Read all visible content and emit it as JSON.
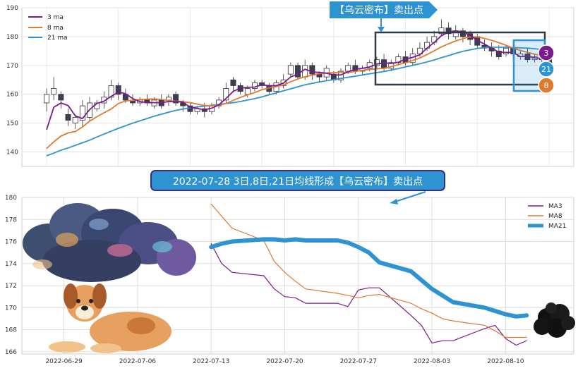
{
  "top_chart": {
    "legend": [
      "3 ma",
      "8 ma",
      "21 ma"
    ],
    "y_ticks": [
      "190",
      "180",
      "170",
      "160",
      "150",
      "140"
    ],
    "callout": "【乌云密布】卖出点",
    "badges": [
      "3",
      "21",
      "8"
    ]
  },
  "bottom_chart": {
    "callout": "2022-07-28 3日,8日,21日均线形成【乌云密布】卖出点",
    "legend": [
      "MA3",
      "MA8",
      "MA21"
    ],
    "y_ticks": [
      "180",
      "178",
      "176",
      "174",
      "172",
      "170",
      "168",
      "166"
    ],
    "x_ticks": [
      "2022-06-29",
      "2022-07-06",
      "2022-07-13",
      "2022-07-20",
      "2022-07-27",
      "2022-08-03",
      "2022-08-10"
    ]
  },
  "colors": {
    "ma3": "#7b1a8c",
    "ma8": "#e07a2e",
    "ma21": "#2e93d1",
    "box": "#2f3a44"
  },
  "chart_data": [
    {
      "type": "line",
      "title": "",
      "xlabel": "",
      "ylabel": "",
      "ylim": [
        135,
        190
      ],
      "grid": true,
      "legend_position": "top-left",
      "x": [
        "2022-06-21",
        "2022-06-22",
        "2022-06-23",
        "2022-06-24",
        "2022-06-27",
        "2022-06-28",
        "2022-06-29",
        "2022-06-30",
        "2022-07-01",
        "2022-07-04",
        "2022-07-05",
        "2022-07-06",
        "2022-07-07",
        "2022-07-08",
        "2022-07-11",
        "2022-07-12",
        "2022-07-13",
        "2022-07-14",
        "2022-07-15",
        "2022-07-18",
        "2022-07-19",
        "2022-07-20",
        "2022-07-21",
        "2022-07-22",
        "2022-07-25",
        "2022-07-26",
        "2022-07-27",
        "2022-07-28",
        "2022-07-29",
        "2022-08-01",
        "2022-08-02",
        "2022-08-03",
        "2022-08-04",
        "2022-08-05",
        "2022-08-08",
        "2022-08-09",
        "2022-08-10",
        "2022-08-11",
        "2022-08-12",
        "2022-08-15",
        "2022-08-16",
        "2022-08-17",
        "2022-08-18",
        "2022-08-19",
        "2022-08-22",
        "2022-08-23",
        "2022-08-24",
        "2022-08-25",
        "2022-08-26",
        "2022-08-29",
        "2022-08-30",
        "2022-08-31",
        "2022-09-01",
        "2022-09-02",
        "2022-09-05",
        "2022-09-06",
        "2022-09-07",
        "2022-09-08",
        "2022-09-09",
        "2022-09-12",
        "2022-09-13",
        "2022-09-14",
        "2022-09-15",
        "2022-09-16",
        "2022-09-19",
        "2022-09-20",
        "2022-09-21",
        "2022-09-22",
        "2022-09-23",
        "2022-09-26",
        "2022-09-27"
      ],
      "candles": [
        [
          157,
          160,
          154,
          162
        ],
        [
          160,
          162,
          158,
          166
        ],
        [
          160,
          158,
          155,
          161
        ],
        [
          153,
          151,
          149,
          155
        ],
        [
          150,
          152,
          148,
          153
        ],
        [
          151,
          156,
          149,
          158
        ],
        [
          152,
          157,
          151,
          159
        ],
        [
          155,
          157,
          154,
          158
        ],
        [
          157,
          159,
          155,
          161
        ],
        [
          159,
          163,
          158,
          165
        ],
        [
          163,
          160,
          158,
          164
        ],
        [
          160,
          158,
          157,
          162
        ],
        [
          158,
          157,
          156,
          160
        ],
        [
          157,
          158,
          156,
          159
        ],
        [
          158,
          157,
          156,
          160
        ],
        [
          156,
          158,
          155,
          159
        ],
        [
          158,
          156,
          155,
          160
        ],
        [
          158,
          159,
          156,
          160
        ],
        [
          160,
          157,
          156,
          161
        ],
        [
          157,
          156,
          154,
          158
        ],
        [
          156,
          154,
          153,
          157
        ],
        [
          154,
          155,
          153,
          156
        ],
        [
          155,
          154,
          152,
          157
        ],
        [
          154,
          156,
          153,
          157
        ],
        [
          156,
          158,
          155,
          159
        ],
        [
          158,
          162,
          157,
          164
        ],
        [
          165,
          163,
          161,
          166
        ],
        [
          163,
          161,
          160,
          164
        ],
        [
          160,
          162,
          159,
          163
        ],
        [
          162,
          164,
          161,
          165
        ],
        [
          164,
          163,
          162,
          165
        ],
        [
          163,
          161,
          160,
          164
        ],
        [
          161,
          164,
          160,
          165
        ],
        [
          163,
          165,
          162,
          167
        ],
        [
          167,
          170,
          166,
          171
        ],
        [
          170,
          166,
          165,
          171
        ],
        [
          166,
          170,
          165,
          172
        ],
        [
          170,
          167,
          165,
          171
        ],
        [
          167,
          166,
          164,
          168
        ],
        [
          166,
          169,
          165,
          170
        ],
        [
          167,
          165,
          164,
          168
        ],
        [
          165,
          168,
          164,
          169
        ],
        [
          168,
          170,
          167,
          171
        ],
        [
          170,
          168,
          167,
          172
        ],
        [
          168,
          169,
          167,
          170
        ],
        [
          169,
          171,
          168,
          172
        ],
        [
          170,
          172,
          169,
          173
        ],
        [
          172,
          169,
          168,
          174
        ],
        [
          169,
          171,
          168,
          172
        ],
        [
          171,
          173,
          170,
          174
        ],
        [
          173,
          171,
          170,
          175
        ],
        [
          171,
          174,
          170,
          176
        ],
        [
          174,
          176,
          173,
          178
        ],
        [
          176,
          178,
          175,
          180
        ],
        [
          178,
          180,
          177,
          182
        ],
        [
          181,
          183,
          180,
          186
        ],
        [
          183,
          181,
          179,
          185
        ],
        [
          180,
          182,
          179,
          184
        ],
        [
          182,
          180,
          178,
          183
        ],
        [
          181,
          179,
          177,
          182
        ],
        [
          180,
          177,
          176,
          181
        ],
        [
          177,
          176,
          175,
          179
        ],
        [
          176,
          175,
          173,
          178
        ],
        [
          175,
          173,
          172,
          177
        ],
        [
          174,
          176,
          173,
          177
        ],
        [
          176,
          174,
          172,
          178
        ],
        [
          173,
          174,
          172,
          175
        ],
        [
          174,
          172,
          171,
          176
        ],
        [
          172,
          173,
          171,
          174
        ],
        [
          174,
          172,
          170,
          175
        ],
        [
          172,
          171,
          169,
          173
        ]
      ],
      "series": [
        {
          "name": "3 ma",
          "values": [
            147.7,
            155.5,
            157.0,
            156.1,
            152.5,
            151.6,
            154.7,
            156.8,
            157.6,
            159.3,
            160.8,
            160.2,
            158.5,
            157.5,
            157.1,
            157.1,
            157.1,
            157.5,
            157.5,
            157.3,
            155.5,
            155.1,
            154.6,
            155.2,
            156.3,
            158.6,
            161.0,
            162.1,
            162.4,
            162.5,
            163.3,
            163.0,
            163.0,
            163.9,
            166.0,
            167.0,
            168.7,
            167.7,
            167.6,
            167.3,
            166.7,
            166.7,
            167.8,
            168.7,
            169.0,
            169.5,
            170.5,
            170.9,
            170.7,
            171.1,
            172.2,
            172.8,
            173.7,
            176.0,
            178.0,
            180.3,
            181.6,
            182.0,
            181.6,
            180.4,
            178.7,
            177.4,
            176.0,
            174.6,
            174.5,
            174.5,
            173.0,
            173.3,
            172.6,
            172.5,
            171.5
          ]
        },
        {
          "name": "8 ma",
          "values": [
            141.2,
            143.5,
            145.5,
            146.6,
            147.1,
            148.7,
            150.7,
            152.2,
            153.6,
            154.9,
            156.8,
            157.7,
            157.9,
            158.2,
            158.3,
            158.4,
            158.2,
            157.8,
            157.6,
            157.5,
            157.1,
            156.6,
            156.1,
            156.0,
            156.2,
            156.8,
            157.9,
            158.9,
            159.8,
            160.6,
            161.6,
            162.2,
            162.7,
            163.3,
            164.3,
            165.3,
            166.1,
            166.6,
            167.2,
            167.4,
            167.5,
            167.6,
            167.6,
            167.9,
            168.3,
            168.6,
            168.8,
            169.0,
            169.6,
            170.3,
            170.9,
            171.7,
            172.6,
            173.8,
            175.1,
            176.4,
            177.5,
            178.5,
            179.3,
            179.9,
            179.9,
            179.4,
            178.7,
            177.9,
            177.0,
            176.0,
            175.2,
            174.5,
            173.9,
            173.4,
            173.0
          ]
        },
        {
          "name": "21 ma",
          "values": [
            138.7,
            139.6,
            140.6,
            141.4,
            142.3,
            143.2,
            144.1,
            145.2,
            146.2,
            147.2,
            148.2,
            149.1,
            150.0,
            150.8,
            151.6,
            152.4,
            153.1,
            153.8,
            154.4,
            154.9,
            155.3,
            155.6,
            155.9,
            156.2,
            156.5,
            156.8,
            157.1,
            157.5,
            158.0,
            158.5,
            159.1,
            159.8,
            160.5,
            161.2,
            161.9,
            162.6,
            163.3,
            163.8,
            164.3,
            164.7,
            165.1,
            165.5,
            165.9,
            166.3,
            166.7,
            167.1,
            167.5,
            167.9,
            168.4,
            168.9,
            169.5,
            170.0,
            170.6,
            171.2,
            171.9,
            172.7,
            173.4,
            174.2,
            174.9,
            175.4,
            175.9,
            176.2,
            176.3,
            176.3,
            176.3,
            176.2,
            176.1,
            176.0,
            175.8,
            175.5,
            175.1
          ]
        }
      ]
    },
    {
      "type": "line",
      "title": "",
      "xlabel": "",
      "ylabel": "",
      "ylim": [
        165.8,
        180
      ],
      "grid": true,
      "legend_position": "top-right",
      "x": [
        "2022-07-13",
        "2022-07-14",
        "2022-07-15",
        "2022-07-18",
        "2022-07-19",
        "2022-07-20",
        "2022-07-21",
        "2022-07-22",
        "2022-07-25",
        "2022-07-26",
        "2022-07-27",
        "2022-07-28",
        "2022-07-29",
        "2022-08-01",
        "2022-08-02",
        "2022-08-03",
        "2022-08-04",
        "2022-08-05",
        "2022-08-08",
        "2022-08-09",
        "2022-08-10",
        "2022-08-11",
        "2022-08-12"
      ],
      "series": [
        {
          "name": "MA3",
          "values": [
            175.8,
            174.0,
            173.2,
            172.9,
            171.7,
            171.0,
            170.9,
            170.4,
            170.4,
            170.1,
            171.6,
            171.8,
            171.8,
            169.3,
            168.4,
            166.8,
            167.0,
            167.0,
            168.1,
            168.4,
            167.2,
            166.6,
            167.0
          ]
        },
        {
          "name": "MA8",
          "values": [
            179.4,
            178.3,
            177.2,
            176.1,
            174.2,
            173.2,
            172.4,
            171.7,
            171.3,
            171.1,
            170.9,
            171.1,
            171.2,
            170.4,
            169.9,
            169.5,
            169.0,
            168.8,
            168.4,
            167.9,
            167.3,
            167.3,
            167.3
          ]
        },
        {
          "name": "MA21",
          "values": [
            175.5,
            175.8,
            176.0,
            176.2,
            176.2,
            176.1,
            176.2,
            176.1,
            176.1,
            175.9,
            175.5,
            175.0,
            174.1,
            173.3,
            172.5,
            171.7,
            171.1,
            170.5,
            170.0,
            169.7,
            169.4,
            169.2,
            169.3
          ]
        }
      ]
    }
  ]
}
